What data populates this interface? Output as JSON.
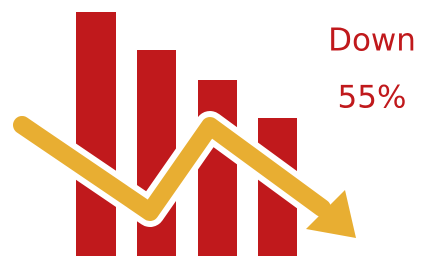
{
  "caption": {
    "line1": "Down",
    "line2": "55%"
  }
}
